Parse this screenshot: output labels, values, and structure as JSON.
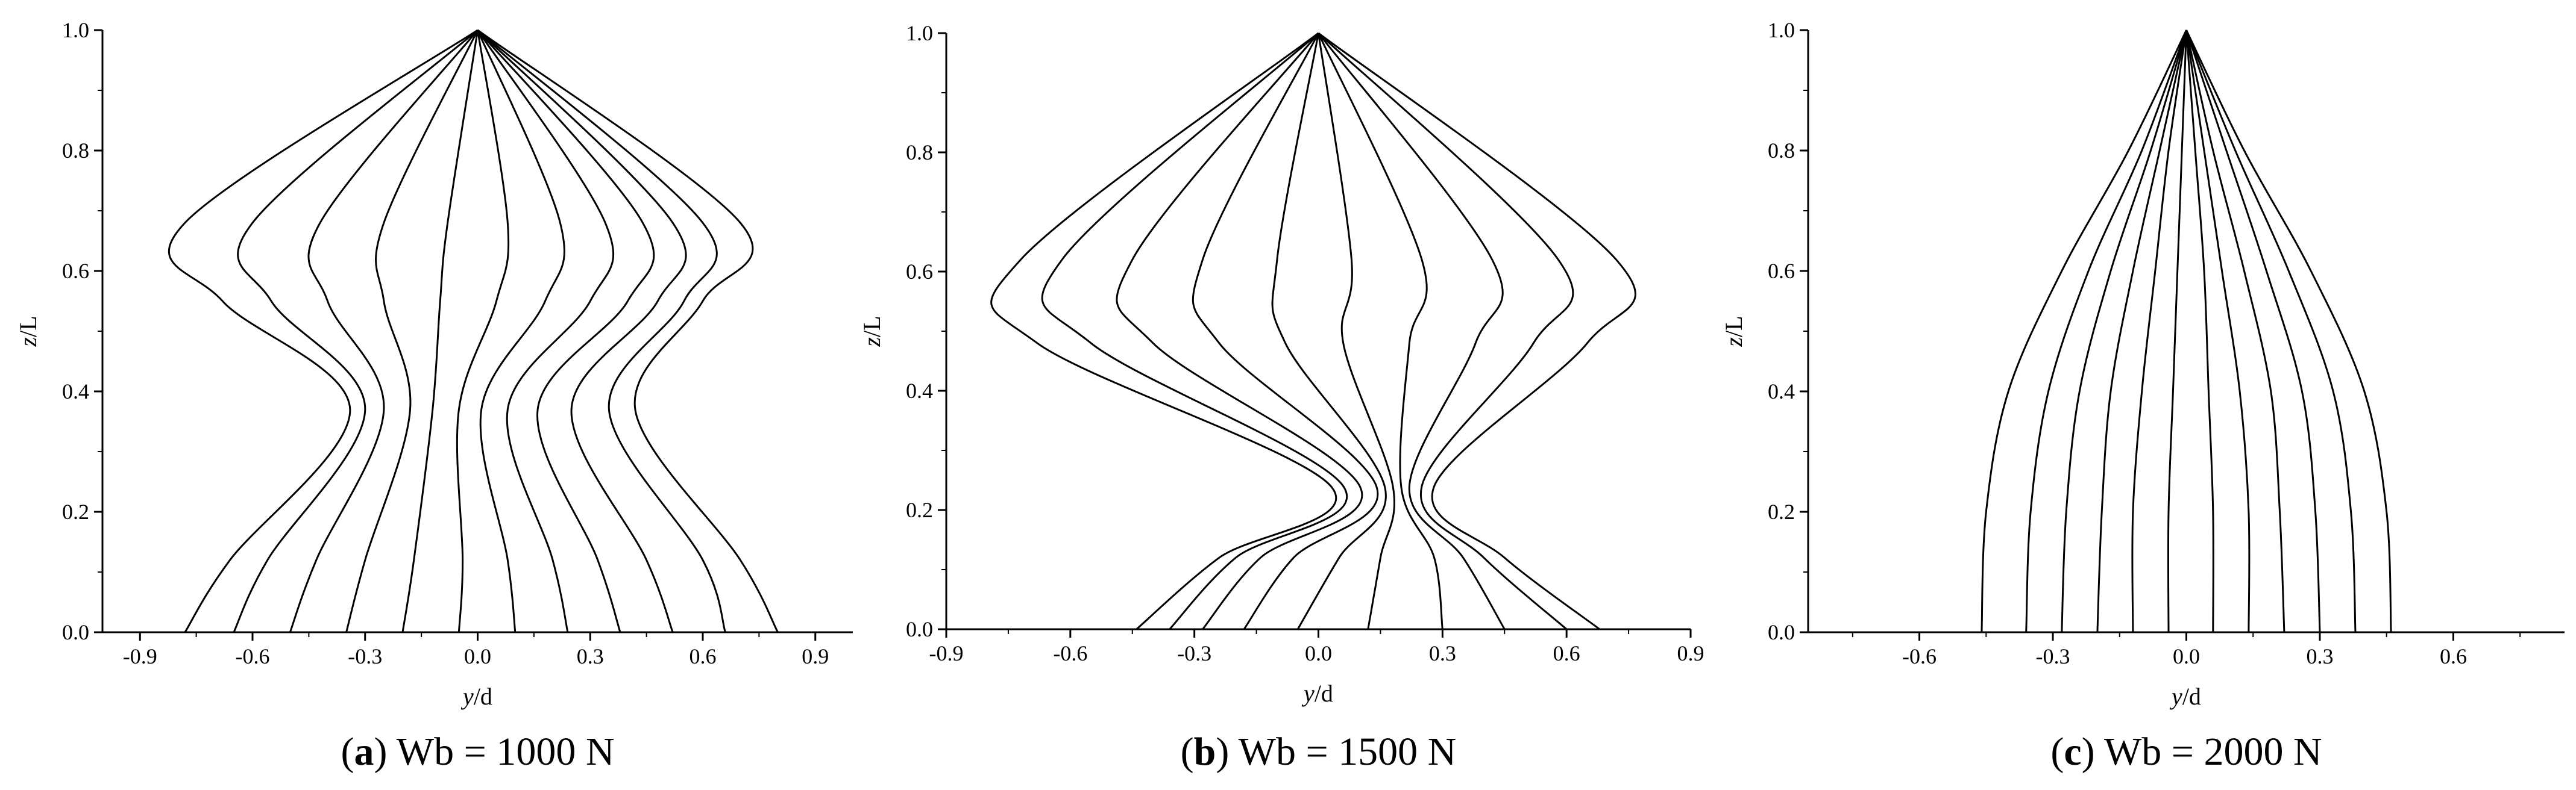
{
  "figure": {
    "panels": [
      {
        "caption_letter": "a",
        "caption_rest": "Wb = 1000 N",
        "xlabel_italic": "y",
        "xlabel_rest": "/d",
        "ylabel_italic": "z",
        "ylabel_rest": "/L"
      },
      {
        "caption_letter": "b",
        "caption_rest": "Wb = 1500 N",
        "xlabel_italic": "y",
        "xlabel_rest": "/d",
        "ylabel_italic": "z",
        "ylabel_rest": "/L"
      },
      {
        "caption_letter": "c",
        "caption_rest": "Wb = 2000 N",
        "xlabel_italic": "y",
        "xlabel_rest": "/d",
        "ylabel_italic": "z",
        "ylabel_rest": "/L"
      }
    ]
  },
  "chart_data": [
    {
      "type": "line",
      "title": "",
      "caption": "(a) Wb = 1000 N",
      "xlabel": "y/d",
      "ylabel": "z/L",
      "xlim": [
        -1.0,
        1.0
      ],
      "ylim": [
        0.0,
        1.0
      ],
      "xticks": [
        "-0.9",
        "-0.6",
        "-0.3",
        "0.0",
        "0.3",
        "0.6",
        "0.9"
      ],
      "yticks": [
        "0.0",
        "0.2",
        "0.4",
        "0.6",
        "0.8",
        "1.0"
      ],
      "grid": false,
      "legend": "none",
      "line_color": "#000000",
      "description_of_family": "Riser deflection snapshots: node at z/L=1.0 (y=0), crossover near z/L=0.38",
      "series": [
        {
          "x": [
            0.8,
            0.7,
            0.42,
            0.6,
            0.7,
            0.0
          ],
          "y": [
            0.0,
            0.12,
            0.37,
            0.55,
            0.68,
            1.0
          ]
        },
        {
          "x": [
            0.66,
            0.6,
            0.35,
            0.55,
            0.6,
            0.0
          ],
          "y": [
            0.0,
            0.12,
            0.37,
            0.55,
            0.68,
            1.0
          ]
        },
        {
          "x": [
            0.52,
            0.45,
            0.25,
            0.48,
            0.52,
            0.0
          ],
          "y": [
            0.0,
            0.12,
            0.37,
            0.55,
            0.68,
            1.0
          ]
        },
        {
          "x": [
            0.38,
            0.32,
            0.16,
            0.4,
            0.44,
            0.0
          ],
          "y": [
            0.0,
            0.12,
            0.37,
            0.55,
            0.68,
            1.0
          ]
        },
        {
          "x": [
            0.24,
            0.2,
            0.08,
            0.3,
            0.34,
            0.0
          ],
          "y": [
            0.0,
            0.12,
            0.37,
            0.55,
            0.68,
            1.0
          ]
        },
        {
          "x": [
            0.1,
            0.08,
            0.01,
            0.18,
            0.22,
            0.0
          ],
          "y": [
            0.0,
            0.12,
            0.37,
            0.55,
            0.68,
            1.0
          ]
        },
        {
          "x": [
            -0.05,
            -0.04,
            -0.05,
            0.05,
            0.08,
            0.0
          ],
          "y": [
            0.0,
            0.12,
            0.37,
            0.55,
            0.68,
            1.0
          ]
        },
        {
          "x": [
            -0.2,
            -0.17,
            -0.12,
            -0.1,
            -0.08,
            0.0
          ],
          "y": [
            0.0,
            0.12,
            0.37,
            0.55,
            0.68,
            1.0
          ]
        },
        {
          "x": [
            -0.35,
            -0.3,
            -0.18,
            -0.25,
            -0.25,
            0.0
          ],
          "y": [
            0.0,
            0.12,
            0.37,
            0.55,
            0.68,
            1.0
          ]
        },
        {
          "x": [
            -0.5,
            -0.43,
            -0.25,
            -0.4,
            -0.42,
            0.0
          ],
          "y": [
            0.0,
            0.12,
            0.37,
            0.55,
            0.68,
            1.0
          ]
        },
        {
          "x": [
            -0.65,
            -0.56,
            -0.3,
            -0.55,
            -0.6,
            0.0
          ],
          "y": [
            0.0,
            0.12,
            0.37,
            0.55,
            0.68,
            1.0
          ]
        },
        {
          "x": [
            -0.78,
            -0.66,
            -0.34,
            -0.68,
            -0.78,
            0.0
          ],
          "y": [
            0.0,
            0.12,
            0.37,
            0.55,
            0.68,
            1.0
          ]
        }
      ]
    },
    {
      "type": "line",
      "title": "",
      "caption": "(b) Wb = 1500 N",
      "xlabel": "y/d",
      "ylabel": "z/L",
      "xlim": [
        -0.9,
        0.9
      ],
      "ylim": [
        0.0,
        1.0
      ],
      "xticks": [
        "-0.9",
        "-0.6",
        "-0.3",
        "0.0",
        "0.3",
        "0.6",
        "0.9"
      ],
      "yticks": [
        "0.0",
        "0.2",
        "0.4",
        "0.6",
        "0.8",
        "1.0"
      ],
      "grid": false,
      "legend": "none",
      "line_color": "#000000",
      "description_of_family": "Riser deflection snapshots: node at z/L=1.0 (y=0), crossover near z/L=0.23",
      "series": [
        {
          "x": [
            0.68,
            0.45,
            0.28,
            0.65,
            0.72,
            0.0
          ],
          "y": [
            0.0,
            0.12,
            0.24,
            0.48,
            0.62,
            1.0
          ]
        },
        {
          "x": [
            0.6,
            0.4,
            0.25,
            0.52,
            0.58,
            0.0
          ],
          "y": [
            0.0,
            0.12,
            0.24,
            0.48,
            0.62,
            1.0
          ]
        },
        {
          "x": [
            0.45,
            0.35,
            0.22,
            0.38,
            0.42,
            0.0
          ],
          "y": [
            0.0,
            0.12,
            0.24,
            0.48,
            0.62,
            1.0
          ]
        },
        {
          "x": [
            0.3,
            0.28,
            0.2,
            0.22,
            0.25,
            0.0
          ],
          "y": [
            0.0,
            0.12,
            0.24,
            0.48,
            0.62,
            1.0
          ]
        },
        {
          "x": [
            0.12,
            0.15,
            0.18,
            0.06,
            0.08,
            0.0
          ],
          "y": [
            0.0,
            0.12,
            0.24,
            0.48,
            0.62,
            1.0
          ]
        },
        {
          "x": [
            -0.05,
            0.05,
            0.16,
            -0.08,
            -0.1,
            0.0
          ],
          "y": [
            0.0,
            0.12,
            0.24,
            0.48,
            0.62,
            1.0
          ]
        },
        {
          "x": [
            -0.18,
            -0.06,
            0.14,
            -0.24,
            -0.28,
            0.0
          ],
          "y": [
            0.0,
            0.12,
            0.24,
            0.48,
            0.62,
            1.0
          ]
        },
        {
          "x": [
            -0.28,
            -0.14,
            0.1,
            -0.4,
            -0.45,
            0.0
          ],
          "y": [
            0.0,
            0.12,
            0.24,
            0.48,
            0.62,
            1.0
          ]
        },
        {
          "x": [
            -0.36,
            -0.2,
            0.06,
            -0.55,
            -0.62,
            0.0
          ],
          "y": [
            0.0,
            0.12,
            0.24,
            0.48,
            0.62,
            1.0
          ]
        },
        {
          "x": [
            -0.44,
            -0.24,
            0.03,
            -0.68,
            -0.72,
            0.0
          ],
          "y": [
            0.0,
            0.12,
            0.24,
            0.48,
            0.62,
            1.0
          ]
        }
      ]
    },
    {
      "type": "line",
      "title": "",
      "caption": "(c) Wb = 2000 N",
      "xlabel": "y/d",
      "ylabel": "z/L",
      "xlim": [
        -0.85,
        0.85
      ],
      "ylim": [
        0.0,
        1.0
      ],
      "xticks": [
        "-0.6",
        "-0.3",
        "0.0",
        "0.3",
        "0.6"
      ],
      "yticks": [
        "0.0",
        "0.2",
        "0.4",
        "0.6",
        "0.8",
        "1.0"
      ],
      "grid": false,
      "legend": "none",
      "line_color": "#000000",
      "description_of_family": "First-mode riser deflection snapshots, node at z/L=1.0",
      "series": [
        {
          "x": [
            0.46,
            0.45,
            0.4,
            0.28,
            0.13,
            0.0
          ],
          "y": [
            0.0,
            0.2,
            0.4,
            0.6,
            0.8,
            1.0
          ]
        },
        {
          "x": [
            0.38,
            0.37,
            0.33,
            0.23,
            0.11,
            0.0
          ],
          "y": [
            0.0,
            0.2,
            0.4,
            0.6,
            0.8,
            1.0
          ]
        },
        {
          "x": [
            0.3,
            0.29,
            0.26,
            0.18,
            0.09,
            0.0
          ],
          "y": [
            0.0,
            0.2,
            0.4,
            0.6,
            0.8,
            1.0
          ]
        },
        {
          "x": [
            0.22,
            0.21,
            0.19,
            0.13,
            0.06,
            0.0
          ],
          "y": [
            0.0,
            0.2,
            0.4,
            0.6,
            0.8,
            1.0
          ]
        },
        {
          "x": [
            0.14,
            0.14,
            0.12,
            0.08,
            0.04,
            0.0
          ],
          "y": [
            0.0,
            0.2,
            0.4,
            0.6,
            0.8,
            1.0
          ]
        },
        {
          "x": [
            0.06,
            0.06,
            0.05,
            0.04,
            0.02,
            0.0
          ],
          "y": [
            0.0,
            0.2,
            0.4,
            0.6,
            0.8,
            1.0
          ]
        },
        {
          "x": [
            -0.04,
            -0.04,
            -0.03,
            -0.02,
            -0.01,
            0.0
          ],
          "y": [
            0.0,
            0.2,
            0.4,
            0.6,
            0.8,
            1.0
          ]
        },
        {
          "x": [
            -0.12,
            -0.12,
            -0.1,
            -0.07,
            -0.04,
            0.0
          ],
          "y": [
            0.0,
            0.2,
            0.4,
            0.6,
            0.8,
            1.0
          ]
        },
        {
          "x": [
            -0.2,
            -0.19,
            -0.17,
            -0.12,
            -0.06,
            0.0
          ],
          "y": [
            0.0,
            0.2,
            0.4,
            0.6,
            0.8,
            1.0
          ]
        },
        {
          "x": [
            -0.28,
            -0.27,
            -0.24,
            -0.17,
            -0.08,
            0.0
          ],
          "y": [
            0.0,
            0.2,
            0.4,
            0.6,
            0.8,
            1.0
          ]
        },
        {
          "x": [
            -0.36,
            -0.35,
            -0.31,
            -0.22,
            -0.1,
            0.0
          ],
          "y": [
            0.0,
            0.2,
            0.4,
            0.6,
            0.8,
            1.0
          ]
        },
        {
          "x": [
            -0.46,
            -0.45,
            -0.4,
            -0.28,
            -0.13,
            0.0
          ],
          "y": [
            0.0,
            0.2,
            0.4,
            0.6,
            0.8,
            1.0
          ]
        }
      ]
    }
  ]
}
